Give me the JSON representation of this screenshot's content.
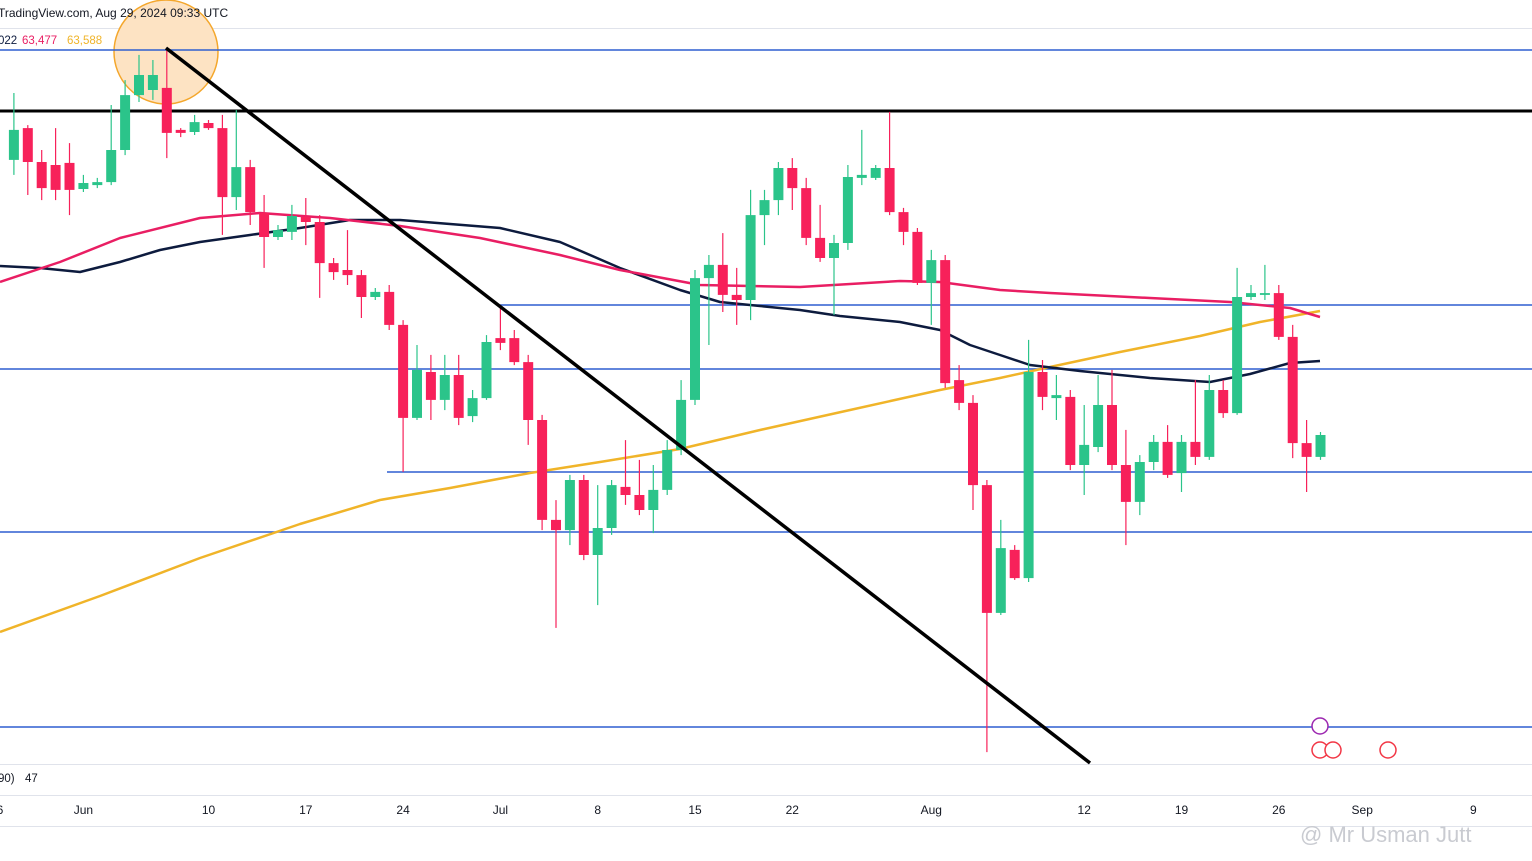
{
  "header": "TradingView.com, Aug 29, 2024 09:33 UTC",
  "indicators": [
    {
      "label": "022",
      "color": "#0d1b3e"
    },
    {
      "label": "63,477",
      "color": "#e91e63"
    },
    {
      "label": "63,588",
      "color": "#f0b429"
    }
  ],
  "oscillator": {
    "label": "90)",
    "value": 47
  },
  "watermark": "@ Mr Usman Jutt",
  "chart_data": {
    "type": "candlestick",
    "up_color": "#2bc48a",
    "down_color": "#f7215a",
    "ylim": [
      48500,
      74000
    ],
    "categories": [
      "6",
      null,
      null,
      null,
      null,
      null,
      "Jun",
      null,
      null,
      null,
      null,
      null,
      null,
      null,
      null,
      "10",
      null,
      null,
      null,
      null,
      null,
      null,
      "17",
      null,
      null,
      null,
      null,
      null,
      null,
      "24",
      null,
      null,
      null,
      null,
      null,
      null,
      "Jul",
      null,
      null,
      null,
      null,
      null,
      null,
      "8",
      null,
      null,
      null,
      null,
      null,
      null,
      "15",
      null,
      null,
      null,
      null,
      null,
      null,
      "22",
      null,
      null,
      null,
      null,
      null,
      null,
      null,
      null,
      null,
      "Aug",
      null,
      null,
      null,
      null,
      null,
      null,
      null,
      null,
      null,
      null,
      "12",
      null,
      null,
      null,
      null,
      null,
      null,
      "19",
      null,
      null,
      null,
      null,
      null,
      null,
      "26",
      null,
      null,
      null,
      null,
      null,
      "Sep",
      null,
      null,
      null,
      null,
      null,
      null,
      null,
      "9",
      null,
      null
    ],
    "open": [
      null,
      68670,
      69730,
      68600,
      68500,
      68570,
      67700,
      67830,
      67930,
      69000,
      70830,
      71000,
      71070,
      69670,
      69600,
      69900,
      69730,
      67430,
      68430,
      66900,
      66100,
      66270,
      66770,
      66600,
      65230,
      65000,
      64830,
      64100,
      64270,
      63170,
      60070,
      61600,
      60670,
      61500,
      60130,
      60730,
      62730,
      62730,
      61930,
      60000,
      56670,
      56330,
      58000,
      55500,
      56400,
      57770,
      57500,
      57000,
      57670,
      59000,
      60670,
      64730,
      65170,
      64170,
      64000,
      66830,
      67330,
      68400,
      67730,
      66070,
      65400,
      65900,
      68070,
      68070,
      68400,
      66930,
      66270,
      64570,
      65330,
      61330,
      60570,
      57830,
      53570,
      55670,
      54730,
      61600,
      60730,
      60770,
      58500,
      59100,
      60500,
      58500,
      57270,
      58600,
      59270,
      58230,
      59270,
      58770,
      61000,
      60230,
      64100,
      64170,
      64230,
      62770,
      59230,
      58770,
      null,
      null,
      null,
      null,
      null,
      null,
      null,
      null,
      null,
      null,
      null,
      null,
      null
    ],
    "high": [
      null,
      70900,
      69830,
      69000,
      69730,
      69230,
      68170,
      68070,
      70500,
      71330,
      72170,
      72000,
      72400,
      69730,
      70170,
      70000,
      70170,
      70330,
      68670,
      67500,
      66500,
      67170,
      67400,
      66830,
      65400,
      66330,
      65000,
      64400,
      64500,
      63330,
      62500,
      62170,
      62170,
      62170,
      61000,
      62830,
      63830,
      63000,
      62170,
      60170,
      57330,
      58170,
      58170,
      57830,
      58000,
      59330,
      58670,
      58500,
      59330,
      61330,
      65000,
      65500,
      66230,
      65070,
      67670,
      67670,
      68600,
      68730,
      68070,
      67170,
      66170,
      68500,
      69670,
      68500,
      70270,
      67070,
      66400,
      65670,
      65500,
      61830,
      60830,
      58000,
      56670,
      55830,
      62670,
      62000,
      61500,
      61000,
      60500,
      61500,
      61670,
      59670,
      58830,
      59500,
      59830,
      59500,
      61330,
      61500,
      61330,
      65070,
      64500,
      65170,
      64500,
      63170,
      60000,
      59600,
      null,
      null,
      null,
      null,
      null,
      null,
      null,
      null,
      null,
      null,
      null,
      null,
      null
    ],
    "low": [
      null,
      68170,
      67500,
      67330,
      67330,
      66830,
      67600,
      67730,
      67830,
      68830,
      70600,
      70670,
      68730,
      69430,
      69500,
      69670,
      66170,
      67000,
      66500,
      65070,
      66000,
      66000,
      65830,
      64070,
      64670,
      64500,
      63400,
      64000,
      63000,
      58270,
      60000,
      60000,
      60330,
      59830,
      59930,
      60670,
      62330,
      61830,
      59170,
      56330,
      53070,
      55830,
      55330,
      53830,
      56170,
      57170,
      56830,
      56230,
      57500,
      58830,
      60500,
      62500,
      63600,
      63170,
      63330,
      65830,
      66830,
      67000,
      65830,
      65270,
      63500,
      65670,
      67830,
      68000,
      66830,
      65830,
      64500,
      63170,
      61070,
      60330,
      57000,
      48930,
      53500,
      54670,
      54600,
      60330,
      60000,
      58330,
      57500,
      58930,
      58330,
      55830,
      56830,
      58330,
      58070,
      57600,
      58500,
      58670,
      60070,
      60170,
      64000,
      64000,
      62670,
      58730,
      57600,
      58670,
      null,
      null,
      null,
      null,
      null,
      null,
      null,
      null,
      null,
      null,
      null,
      null,
      null
    ],
    "close": [
      null,
      69670,
      68600,
      67730,
      67670,
      67670,
      67900,
      67930,
      69000,
      70830,
      71500,
      71500,
      69570,
      69570,
      69930,
      69730,
      67430,
      68430,
      66930,
      66100,
      66330,
      66800,
      66600,
      65230,
      64930,
      64830,
      64100,
      64270,
      63170,
      60070,
      61670,
      60670,
      61500,
      60070,
      60730,
      62600,
      62570,
      61930,
      60000,
      56670,
      56330,
      58000,
      55500,
      56400,
      57830,
      57500,
      57000,
      57670,
      59000,
      60670,
      64730,
      65170,
      64170,
      64000,
      66830,
      67330,
      68400,
      67730,
      66070,
      65400,
      65900,
      68100,
      68170,
      68400,
      66930,
      66270,
      64570,
      65330,
      61230,
      60570,
      57830,
      53570,
      55730,
      54730,
      61600,
      60770,
      60830,
      58500,
      59170,
      60500,
      58500,
      57270,
      58600,
      59270,
      58170,
      59270,
      58770,
      61000,
      60230,
      64100,
      64230,
      64230,
      62770,
      59230,
      58770,
      59500,
      null,
      null,
      null,
      null,
      null,
      null,
      null,
      null,
      null,
      null,
      null,
      null,
      null
    ]
  }
}
